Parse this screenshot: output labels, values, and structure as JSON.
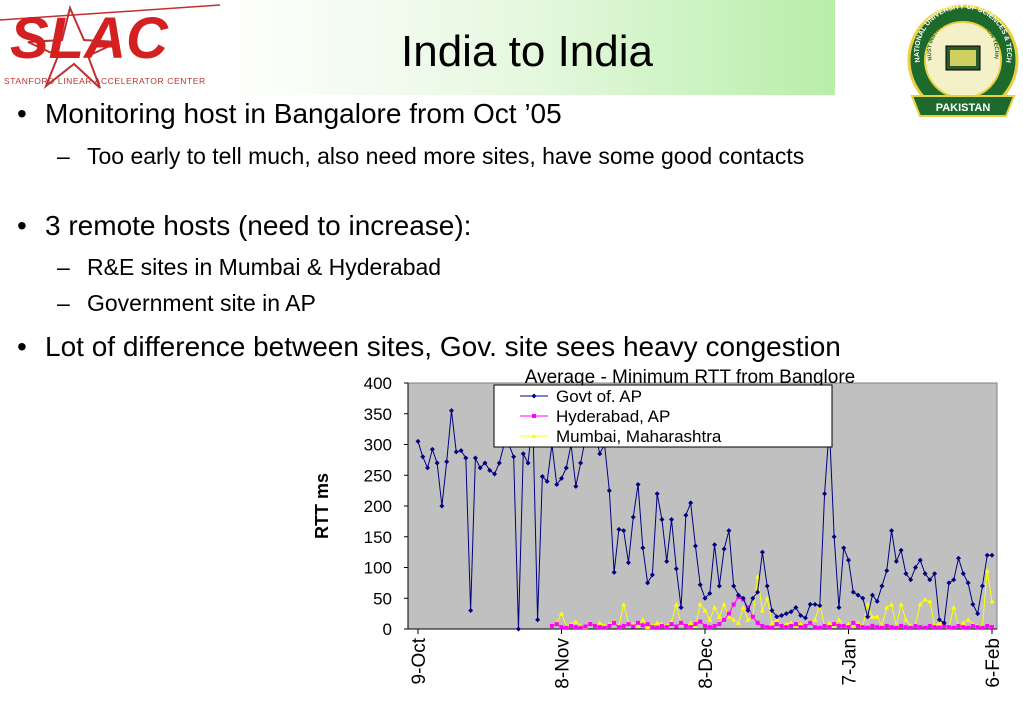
{
  "logos": {
    "left": {
      "name": "SLAC",
      "caption": "Stanford Linear Accelerator Center"
    },
    "right": {
      "outer": "NATIONAL UNIVERSITY OF SCIENCES & TECHNOLOGY",
      "inner": "NUST INSTITUTE OF INFORMATION TECHNOLOGY",
      "label": "PAKISTAN"
    }
  },
  "title": "India to India",
  "bullets": [
    {
      "text": "Monitoring host in Bangalore from Oct ’05",
      "sub": [
        "Too early to tell much, also need more sites, have some good contacts"
      ]
    },
    {
      "text": "3 remote hosts (need to increase):",
      "sub": [
        "R&E sites in Mumbai & Hyderabad",
        "Government site in AP"
      ]
    },
    {
      "text": "Lot of difference between sites, Gov. site sees heavy congestion",
      "sub": []
    }
  ],
  "chart_data": {
    "type": "line",
    "title": "Average - Minimum RTT from Banglore",
    "y_label": "RTT ms",
    "ylim": [
      0,
      400
    ],
    "yticks": [
      0,
      50,
      100,
      150,
      200,
      250,
      300,
      350,
      400
    ],
    "grid": false,
    "categories": [
      "9-Oct",
      null,
      null,
      null,
      null,
      null,
      null,
      null,
      null,
      null,
      null,
      null,
      null,
      null,
      null,
      null,
      null,
      null,
      null,
      null,
      null,
      null,
      null,
      null,
      null,
      null,
      null,
      null,
      null,
      null,
      "8-Nov",
      null,
      null,
      null,
      null,
      null,
      null,
      null,
      null,
      null,
      null,
      null,
      null,
      null,
      null,
      null,
      null,
      null,
      null,
      null,
      null,
      null,
      null,
      null,
      null,
      null,
      null,
      null,
      null,
      null,
      "8-Dec",
      null,
      null,
      null,
      null,
      null,
      null,
      null,
      null,
      null,
      null,
      null,
      null,
      null,
      null,
      null,
      null,
      null,
      null,
      null,
      null,
      null,
      null,
      null,
      null,
      null,
      null,
      null,
      null,
      null,
      "7-Jan",
      null,
      null,
      null,
      null,
      null,
      null,
      null,
      null,
      null,
      null,
      null,
      null,
      null,
      null,
      null,
      null,
      null,
      null,
      null,
      null,
      null,
      null,
      null,
      null,
      null,
      null,
      null,
      null,
      null,
      "6-Feb"
    ],
    "legend": "top",
    "series": [
      {
        "name": "Govt of. AP",
        "color": "#000080",
        "marker": "diamond",
        "values": [
          305,
          280,
          262,
          292,
          270,
          200,
          272,
          355,
          288,
          290,
          278,
          30,
          278,
          262,
          270,
          258,
          252,
          270,
          300,
          300,
          280,
          0,
          285,
          270,
          340,
          15,
          248,
          240,
          300,
          235,
          245,
          262,
          300,
          232,
          270,
          310,
          320,
          320,
          285,
          300,
          225,
          92,
          162,
          160,
          108,
          182,
          235,
          132,
          75,
          88,
          220,
          178,
          110,
          178,
          98,
          35,
          185,
          205,
          135,
          72,
          50,
          58,
          137,
          70,
          130,
          160,
          70,
          55,
          50,
          30,
          50,
          60,
          125,
          70,
          30,
          20,
          22,
          25,
          28,
          35,
          22,
          18,
          40,
          40,
          38,
          220,
          330,
          150,
          35,
          132,
          112,
          60,
          55,
          50,
          20,
          55,
          45,
          70,
          95,
          160,
          110,
          128,
          90,
          80,
          100,
          112,
          90,
          80,
          90,
          15,
          10,
          75,
          80,
          115,
          90,
          75,
          40,
          25,
          70,
          120,
          120
        ]
      },
      {
        "name": "Hyderabad, AP",
        "color": "#ff00ff",
        "marker": "square",
        "values": [
          null,
          null,
          null,
          null,
          null,
          null,
          null,
          null,
          null,
          null,
          null,
          null,
          null,
          null,
          null,
          null,
          null,
          null,
          null,
          null,
          null,
          null,
          null,
          null,
          null,
          null,
          null,
          null,
          5,
          8,
          3,
          2,
          5,
          3,
          2,
          4,
          8,
          5,
          3,
          2,
          5,
          10,
          3,
          5,
          8,
          4,
          10,
          6,
          8,
          3,
          2,
          5,
          3,
          8,
          4,
          10,
          5,
          3,
          8,
          12,
          5,
          3,
          5,
          8,
          15,
          25,
          40,
          52,
          48,
          35,
          20,
          10,
          5,
          3,
          2,
          8,
          5,
          3,
          5,
          8,
          3,
          5,
          10,
          3,
          2,
          5,
          3,
          8,
          5,
          5,
          3,
          10,
          5,
          3,
          2,
          5,
          3,
          2,
          5,
          3,
          2,
          5,
          3,
          2,
          5,
          3,
          2,
          5,
          3,
          2,
          5,
          3,
          2,
          5,
          3,
          2,
          5,
          3,
          2,
          5,
          3
        ]
      },
      {
        "name": "Mumbai, Maharashtra",
        "color": "#ffff00",
        "marker": "triangle",
        "values": [
          null,
          null,
          null,
          null,
          null,
          null,
          null,
          null,
          null,
          null,
          null,
          null,
          null,
          null,
          null,
          null,
          null,
          null,
          null,
          null,
          null,
          null,
          null,
          null,
          null,
          null,
          null,
          null,
          5,
          10,
          25,
          5,
          8,
          12,
          5,
          3,
          8,
          5,
          10,
          5,
          8,
          12,
          5,
          40,
          10,
          8,
          5,
          15,
          3,
          5,
          10,
          8,
          5,
          12,
          40,
          8,
          5,
          10,
          5,
          40,
          30,
          15,
          35,
          20,
          40,
          20,
          15,
          10,
          35,
          15,
          20,
          85,
          30,
          50,
          10,
          15,
          5,
          8,
          10,
          5,
          8,
          5,
          10,
          15,
          40,
          5,
          10,
          5,
          15,
          5,
          8,
          5,
          10,
          5,
          40,
          20,
          20,
          5,
          35,
          40,
          5,
          40,
          15,
          5,
          8,
          40,
          48,
          45,
          5,
          10,
          5,
          3,
          35,
          5,
          10,
          15,
          8,
          5,
          5,
          95,
          45
        ]
      }
    ]
  }
}
